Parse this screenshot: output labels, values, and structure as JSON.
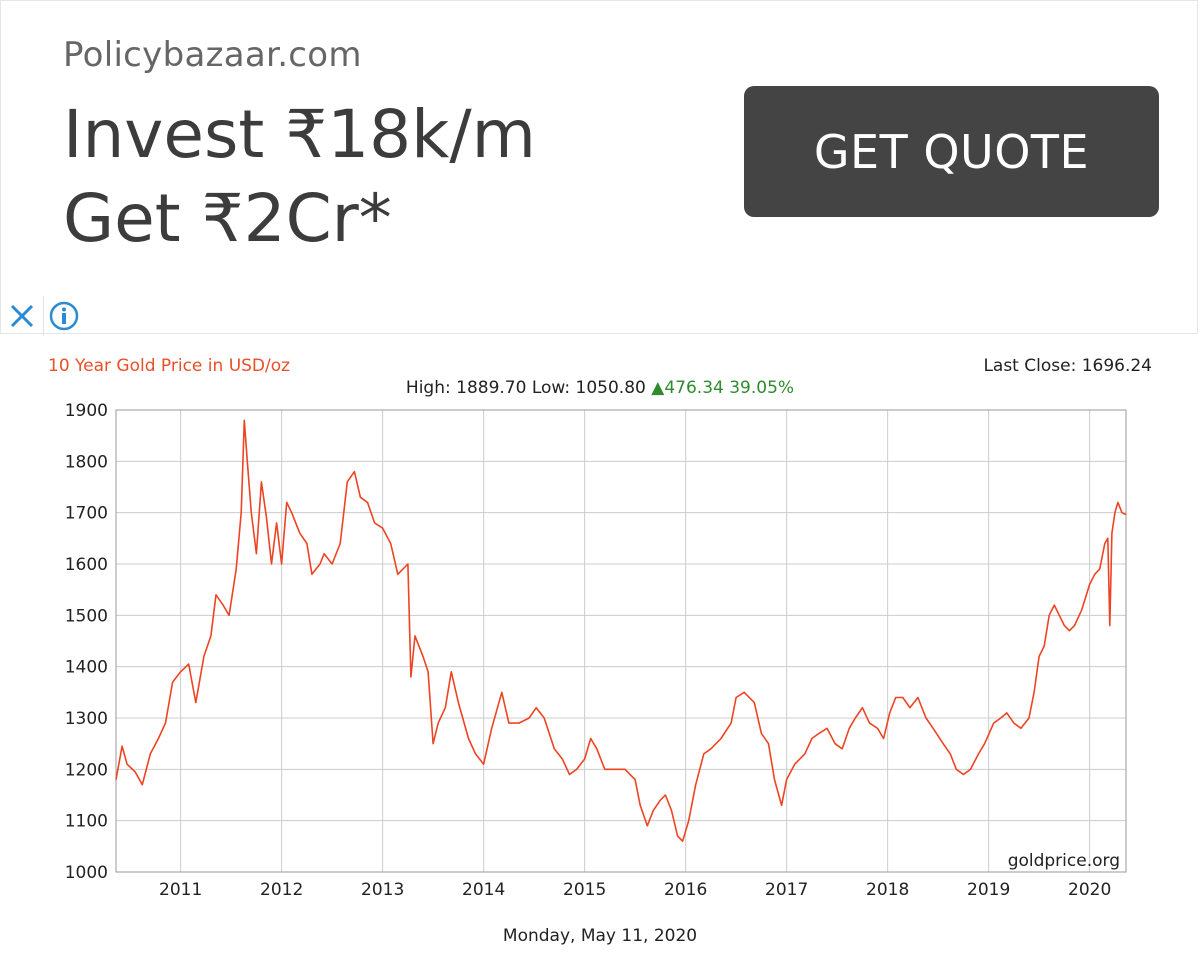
{
  "ad": {
    "domain": "Policybazaar.com",
    "headline_line1": "Invest ₹18k/m",
    "headline_line2": "Get ₹2Cr*",
    "cta_label": "GET QUOTE",
    "close_icon": "close-icon",
    "info_icon": "info-icon",
    "accent_color": "#2a8bd4"
  },
  "chart_data": {
    "type": "line",
    "title": "10 Year Gold Price in USD/oz",
    "last_close_label": "Last Close: 1696.24",
    "stats": {
      "high_label": "High:",
      "high": "1889.70",
      "low_label": "Low:",
      "low": "1050.80",
      "change": "476.34",
      "change_pct": "39.05%"
    },
    "date_label": "Monday, May 11, 2020",
    "watermark": "goldprice.org",
    "ylim": [
      1000,
      1900
    ],
    "yticks": [
      1000,
      1100,
      1200,
      1300,
      1400,
      1500,
      1600,
      1700,
      1800,
      1900
    ],
    "xlim": [
      2010.36,
      2020.36
    ],
    "xticks": [
      2011,
      2012,
      2013,
      2014,
      2015,
      2016,
      2017,
      2018,
      2019,
      2020
    ],
    "grid": true,
    "colors": {
      "line": "#ee4423",
      "title": "#e8502a",
      "change": "#2e8b2e",
      "grid": "#cccccc"
    },
    "series": [
      {
        "x": [
          2010.36,
          2010.42,
          2010.47,
          2010.55,
          2010.62,
          2010.7,
          2010.78,
          2010.85,
          2010.92,
          2011.0,
          2011.08,
          2011.15,
          2011.23,
          2011.3,
          2011.35,
          2011.42,
          2011.48,
          2011.55,
          2011.6,
          2011.63,
          2011.66,
          2011.7,
          2011.75,
          2011.8,
          2011.85,
          2011.9,
          2011.95,
          2012.0,
          2012.05,
          2012.1,
          2012.18,
          2012.25,
          2012.3,
          2012.38,
          2012.42,
          2012.5,
          2012.58,
          2012.65,
          2012.72,
          2012.78,
          2012.85,
          2012.92,
          2013.0,
          2013.08,
          2013.15,
          2013.25,
          2013.28,
          2013.32,
          2013.4,
          2013.45,
          2013.5,
          2013.55,
          2013.62,
          2013.68,
          2013.75,
          2013.85,
          2013.92,
          2014.0,
          2014.08,
          2014.18,
          2014.25,
          2014.35,
          2014.45,
          2014.52,
          2014.6,
          2014.7,
          2014.78,
          2014.85,
          2014.92,
          2015.0,
          2015.06,
          2015.12,
          2015.2,
          2015.3,
          2015.4,
          2015.5,
          2015.55,
          2015.62,
          2015.68,
          2015.75,
          2015.8,
          2015.86,
          2015.92,
          2015.97,
          2016.03,
          2016.1,
          2016.18,
          2016.25,
          2016.35,
          2016.45,
          2016.5,
          2016.58,
          2016.68,
          2016.75,
          2016.82,
          2016.88,
          2016.95,
          2017.0,
          2017.08,
          2017.18,
          2017.25,
          2017.32,
          2017.4,
          2017.48,
          2017.55,
          2017.62,
          2017.68,
          2017.75,
          2017.82,
          2017.9,
          2017.96,
          2018.02,
          2018.08,
          2018.15,
          2018.22,
          2018.3,
          2018.38,
          2018.45,
          2018.55,
          2018.62,
          2018.68,
          2018.75,
          2018.82,
          2018.9,
          2018.96,
          2019.05,
          2019.12,
          2019.18,
          2019.25,
          2019.32,
          2019.4,
          2019.45,
          2019.5,
          2019.55,
          2019.6,
          2019.65,
          2019.7,
          2019.75,
          2019.8,
          2019.85,
          2019.92,
          2020.0,
          2020.05,
          2020.1,
          2020.15,
          2020.18,
          2020.2,
          2020.22,
          2020.25,
          2020.28,
          2020.32,
          2020.36
        ],
        "values": [
          1180,
          1245,
          1210,
          1195,
          1170,
          1230,
          1260,
          1290,
          1370,
          1390,
          1405,
          1330,
          1420,
          1460,
          1540,
          1520,
          1500,
          1590,
          1700,
          1880,
          1800,
          1700,
          1620,
          1760,
          1690,
          1600,
          1680,
          1600,
          1720,
          1700,
          1660,
          1640,
          1580,
          1600,
          1620,
          1600,
          1640,
          1760,
          1780,
          1730,
          1720,
          1680,
          1670,
          1640,
          1580,
          1600,
          1380,
          1460,
          1420,
          1390,
          1250,
          1290,
          1320,
          1390,
          1330,
          1260,
          1230,
          1210,
          1280,
          1350,
          1290,
          1290,
          1300,
          1320,
          1300,
          1240,
          1220,
          1190,
          1200,
          1220,
          1260,
          1240,
          1200,
          1200,
          1200,
          1180,
          1130,
          1090,
          1120,
          1140,
          1150,
          1120,
          1070,
          1060,
          1100,
          1170,
          1230,
          1240,
          1260,
          1290,
          1340,
          1350,
          1330,
          1270,
          1250,
          1180,
          1130,
          1180,
          1210,
          1230,
          1260,
          1270,
          1280,
          1250,
          1240,
          1280,
          1300,
          1320,
          1290,
          1280,
          1260,
          1310,
          1340,
          1340,
          1320,
          1340,
          1300,
          1280,
          1250,
          1230,
          1200,
          1190,
          1200,
          1230,
          1250,
          1290,
          1300,
          1310,
          1290,
          1280,
          1300,
          1350,
          1420,
          1440,
          1500,
          1520,
          1500,
          1480,
          1470,
          1480,
          1510,
          1560,
          1580,
          1590,
          1640,
          1650,
          1480,
          1660,
          1700,
          1720,
          1700,
          1696
        ]
      }
    ]
  }
}
